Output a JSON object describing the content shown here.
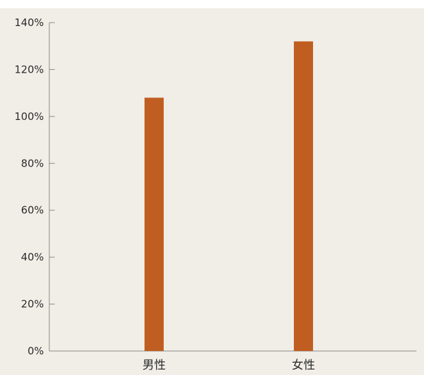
{
  "chart_data": {
    "type": "bar",
    "title": "",
    "xlabel": "",
    "ylabel": "",
    "categories": [
      "男性",
      "女性"
    ],
    "values": [
      108,
      132
    ],
    "value_unit": "%",
    "ylim": [
      0,
      140
    ],
    "yticks": [
      0,
      20,
      40,
      60,
      80,
      100,
      120,
      140
    ],
    "ytick_labels": [
      "0%",
      "20%",
      "40%",
      "60%",
      "80%",
      "100%",
      "120%",
      "140%"
    ],
    "grid": false,
    "legend": "none",
    "colors": {
      "bar": "#C05E22",
      "background": "#F0EEE7",
      "axis": "#8a8a8a",
      "text": "#2b2b2b"
    }
  }
}
